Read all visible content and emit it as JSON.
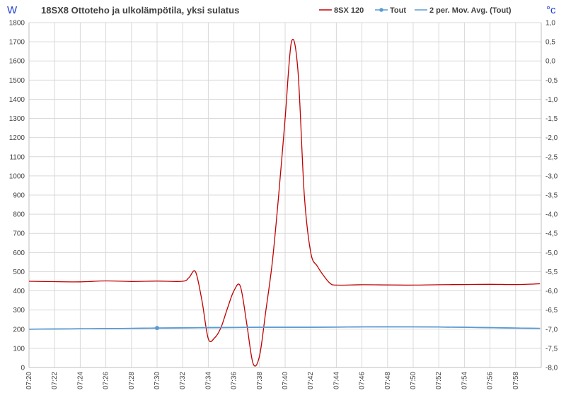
{
  "chart_data": {
    "type": "line",
    "title": "18SX8 Ottoteho ja ulkolämpötila, yksi sulatus",
    "y_left_unit": "W",
    "y_right_unit": "°c",
    "ylim_left": [
      0,
      1800
    ],
    "ylim_right": [
      -8.0,
      1.0
    ],
    "y_left_ticks": [
      "0",
      "100",
      "200",
      "300",
      "400",
      "500",
      "600",
      "700",
      "800",
      "900",
      "1000",
      "1100",
      "1200",
      "1300",
      "1400",
      "1500",
      "1600",
      "1700",
      "1800"
    ],
    "y_right_ticks": [
      "-8,0",
      "-7,5",
      "-7,0",
      "-6,5",
      "-6,0",
      "-5,5",
      "-5,0",
      "-4,5",
      "-4,0",
      "-3,5",
      "-3,0",
      "-2,5",
      "-2,0",
      "-1,5",
      "-1,0",
      "-0,5",
      "0,0",
      "0,5",
      "1,0"
    ],
    "x_ticks": [
      "07:20",
      "07:22",
      "07:24",
      "07:26",
      "07:28",
      "07:30",
      "07:32",
      "07:34",
      "07:36",
      "07:38",
      "07:40",
      "07:42",
      "07:44",
      "07:46",
      "07:48",
      "07:50",
      "07:52",
      "07:54",
      "07:56",
      "07:58"
    ],
    "xlim_minutes_after_0720": [
      0,
      40
    ],
    "legend": [
      "8SX 120",
      "Tout",
      "2 per. Mov. Avg. (Tout)"
    ],
    "series": [
      {
        "name": "8SX 120",
        "axis": "left",
        "color": "#c00000",
        "x": [
          "07:20",
          "07:22",
          "07:24",
          "07:26",
          "07:28",
          "07:30",
          "07:32",
          "07:32.5",
          "07:33",
          "07:33.5",
          "07:34",
          "07:34.5",
          "07:35",
          "07:35.5",
          "07:36",
          "07:36.5",
          "07:37",
          "07:37.5",
          "07:38",
          "07:38.5",
          "07:39",
          "07:39.5",
          "07:40",
          "07:40.5",
          "07:41",
          "07:41.5",
          "07:42",
          "07:42.5",
          "07:43",
          "07:43.5",
          "07:44",
          "07:46",
          "07:48",
          "07:50",
          "07:52",
          "07:54",
          "07:56",
          "07:58",
          "07:59.9"
        ],
        "values": [
          450,
          448,
          447,
          452,
          449,
          451,
          450,
          470,
          500,
          350,
          150,
          155,
          210,
          310,
          400,
          425,
          230,
          20,
          60,
          300,
          550,
          900,
          1300,
          1700,
          1550,
          900,
          600,
          530,
          480,
          440,
          430,
          432,
          431,
          430,
          432,
          433,
          434,
          433,
          437
        ]
      },
      {
        "name": "Tout",
        "axis": "right",
        "color": "#5b9bd5",
        "marker_at": "07:30",
        "x": [
          "07:20",
          "07:24",
          "07:28",
          "07:30",
          "07:34",
          "07:38",
          "07:42",
          "07:46",
          "07:50",
          "07:54",
          "07:58",
          "07:59.9"
        ],
        "values": [
          -7.0,
          -6.99,
          -6.98,
          -6.97,
          -6.96,
          -6.95,
          -6.95,
          -6.94,
          -6.94,
          -6.95,
          -6.97,
          -6.98
        ]
      },
      {
        "name": "2 per. Mov. Avg. (Tout)",
        "axis": "right",
        "color": "#5b9bd5",
        "x": [
          "07:20",
          "07:24",
          "07:28",
          "07:30",
          "07:34",
          "07:38",
          "07:42",
          "07:46",
          "07:50",
          "07:54",
          "07:58",
          "07:59.9"
        ],
        "values": [
          -7.0,
          -6.99,
          -6.98,
          -6.97,
          -6.96,
          -6.95,
          -6.95,
          -6.94,
          -6.94,
          -6.95,
          -6.97,
          -6.98
        ]
      }
    ],
    "grid": true
  }
}
